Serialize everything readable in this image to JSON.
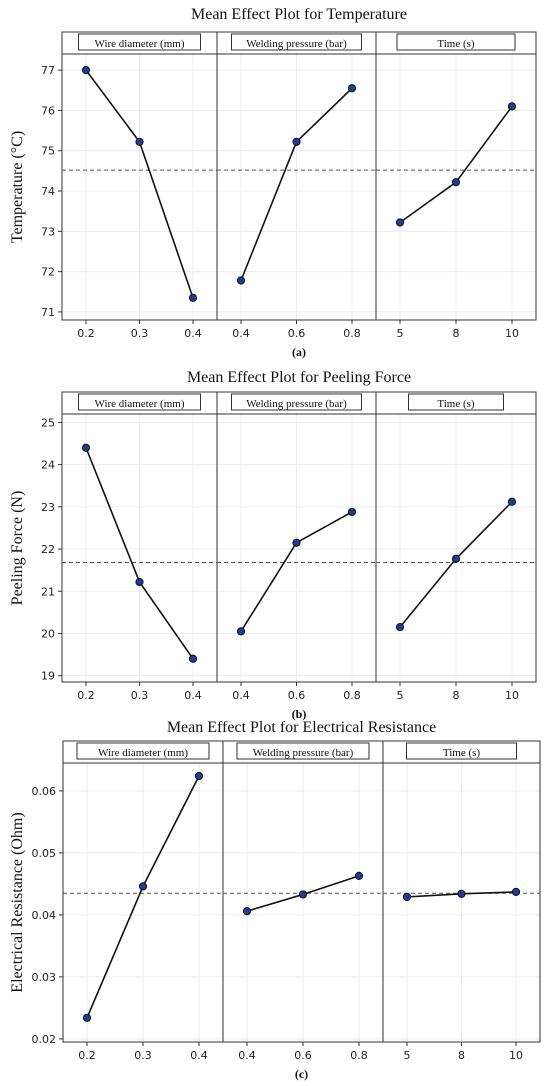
{
  "chart_data": [
    {
      "type": "line",
      "title": "Mean Effect Plot for Temperature",
      "ylabel": "Temperature (°C)",
      "caption": "(a)",
      "ylim": [
        70.8,
        77.4
      ],
      "yticks": [
        71,
        72,
        73,
        74,
        75,
        76,
        77
      ],
      "reference_line": 74.52,
      "panels": [
        {
          "name": "Wire diameter (mm)",
          "categories": [
            "0.2",
            "0.3",
            "0.4"
          ],
          "values": [
            77.0,
            75.22,
            71.35
          ]
        },
        {
          "name": "Welding pressure (bar)",
          "categories": [
            "0.4",
            "0.6",
            "0.8"
          ],
          "values": [
            71.78,
            75.22,
            76.55
          ]
        },
        {
          "name": "Time (s)",
          "categories": [
            "5",
            "8",
            "10"
          ],
          "values": [
            73.22,
            74.22,
            76.1
          ]
        }
      ]
    },
    {
      "type": "line",
      "title": "Mean Effect Plot for Peeling Force",
      "ylabel": "Peeling Force (N)",
      "caption": "(b)",
      "ylim": [
        18.85,
        25.2
      ],
      "yticks": [
        19,
        20,
        21,
        22,
        23,
        24,
        25
      ],
      "reference_line": 21.68,
      "panels": [
        {
          "name": "Wire diameter (mm)",
          "categories": [
            "0.2",
            "0.3",
            "0.4"
          ],
          "values": [
            24.4,
            21.22,
            19.4
          ]
        },
        {
          "name": "Welding pressure (bar)",
          "categories": [
            "0.4",
            "0.6",
            "0.8"
          ],
          "values": [
            20.05,
            22.15,
            22.88
          ]
        },
        {
          "name": "Time (s)",
          "categories": [
            "5",
            "8",
            "10"
          ],
          "values": [
            20.15,
            21.77,
            23.12
          ]
        }
      ]
    },
    {
      "type": "line",
      "title": "Mean Effect Plot for Electrical Resistance",
      "ylabel": "Electrical Resistance (Ohm)",
      "caption": "(c)",
      "ylim": [
        0.0195,
        0.0645
      ],
      "yticks": [
        "0.02",
        "0.03",
        "0.04",
        "0.05",
        "0.06"
      ],
      "reference_line": 0.0435,
      "panels": [
        {
          "name": "Wire diameter (mm)",
          "categories": [
            "0.2",
            "0.3",
            "0.4"
          ],
          "values": [
            0.0234,
            0.0446,
            0.0624
          ]
        },
        {
          "name": "Welding pressure (bar)",
          "categories": [
            "0.4",
            "0.6",
            "0.8"
          ],
          "values": [
            0.0406,
            0.0433,
            0.0463
          ]
        },
        {
          "name": "Time (s)",
          "categories": [
            "5",
            "8",
            "10"
          ],
          "values": [
            0.0429,
            0.0434,
            0.0437
          ]
        }
      ]
    }
  ]
}
